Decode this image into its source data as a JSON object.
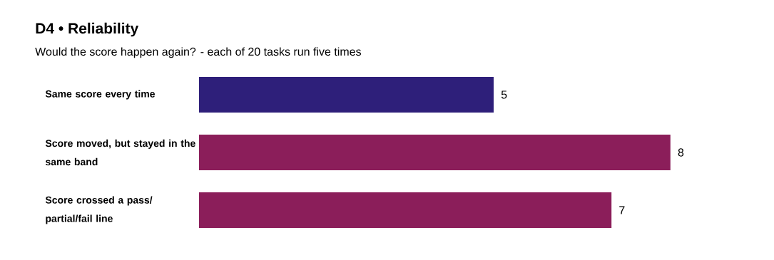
{
  "chart_data": {
    "type": "bar",
    "orientation": "horizontal",
    "title": "D4 • Reliability",
    "subtitle": "Would the score happen again? - each of 20 tasks run five times",
    "categories": [
      "Same score every time",
      "Score moved, but stayed in the same band",
      "Score crossed a pass/ partial/fail line"
    ],
    "values": [
      5,
      8,
      7
    ],
    "colors": [
      "#2e1f7a",
      "#8b1e5a",
      "#8b1e5a"
    ],
    "data_labels": true
  }
}
